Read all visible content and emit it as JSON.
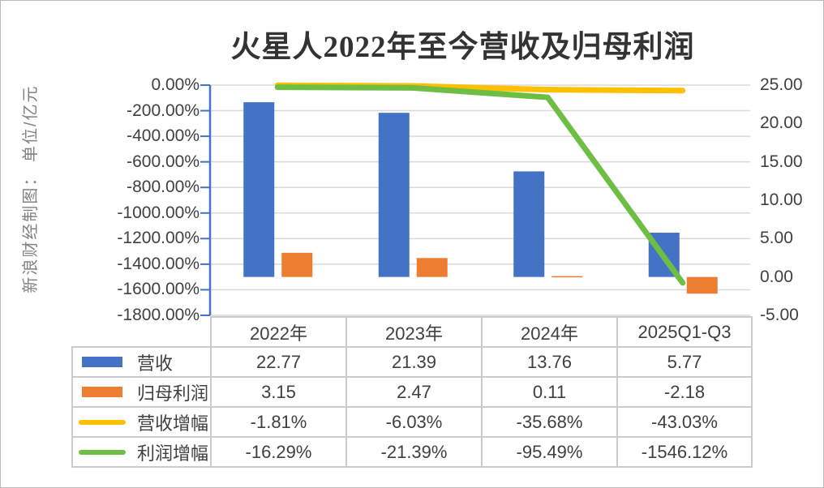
{
  "title": "火星人2022年至今营收及归母利润",
  "unit_note": "新浪财经制图： 单位/亿元",
  "colors": {
    "revenue_bar": "#4472C4",
    "net_profit_bar": "#ED7D31",
    "revenue_growth_line": "#FFC000",
    "profit_growth_line": "#6FBE44",
    "gridline": "#D9D9D9",
    "axis_line": "#4472C4",
    "text": "#404040",
    "table_border": "#cbcbcb"
  },
  "chart_data": {
    "type": "bar+line",
    "title": "火星人2022年至今营收及归母利润",
    "categories": [
      "2022年",
      "2023年",
      "2024年",
      "2025Q1-Q3"
    ],
    "series": [
      {
        "key": "revenue",
        "name": "营收",
        "type": "bar",
        "axis": "right",
        "color": "#4472C4",
        "values": [
          22.77,
          21.39,
          13.76,
          5.77
        ]
      },
      {
        "key": "net-profit",
        "name": "归母利润",
        "type": "bar",
        "axis": "right",
        "color": "#ED7D31",
        "values": [
          3.15,
          2.47,
          0.11,
          -2.18
        ]
      },
      {
        "key": "revenue-growth",
        "name": "营收增幅",
        "type": "line",
        "axis": "left",
        "color": "#FFC000",
        "unit": "%",
        "values": [
          -1.81,
          -6.03,
          -35.68,
          -43.03
        ]
      },
      {
        "key": "profit-growth",
        "name": "利润增幅",
        "type": "line",
        "axis": "left",
        "color": "#6FBE44",
        "unit": "%",
        "values": [
          -16.29,
          -21.39,
          -95.49,
          -1546.12
        ]
      }
    ],
    "left_axis": {
      "min": -1800,
      "max": 0,
      "step": 200,
      "unit": "%",
      "tick_labels": [
        "0.00%",
        "-200.00%",
        "-400.00%",
        "-600.00%",
        "-800.00%",
        "-1000.00%",
        "-1200.00%",
        "-1400.00%",
        "-1600.00%",
        "-1800.00%"
      ]
    },
    "right_axis": {
      "min": -5,
      "max": 25,
      "step": 5,
      "tick_labels": [
        "25.00",
        "20.00",
        "15.00",
        "10.00",
        "5.00",
        "0.00",
        "-5.00"
      ]
    },
    "grid": "horizontal gridlines at left-axis steps",
    "legend_position": "table left column"
  },
  "table": {
    "header": [
      "2022年",
      "2023年",
      "2024年",
      "2025Q1-Q3"
    ],
    "rows": [
      {
        "key": "revenue",
        "label": "营收",
        "swatch": {
          "shape": "rect",
          "color": "#4472C4"
        },
        "cells": [
          "22.77",
          "21.39",
          "13.76",
          "5.77"
        ]
      },
      {
        "key": "net-profit",
        "label": "归母利润",
        "swatch": {
          "shape": "rect",
          "color": "#ED7D31"
        },
        "cells": [
          "3.15",
          "2.47",
          "0.11",
          "-2.18"
        ]
      },
      {
        "key": "revenue-growth",
        "label": "营收增幅",
        "swatch": {
          "shape": "line",
          "color": "#FFC000"
        },
        "cells": [
          "-1.81%",
          "-6.03%",
          "-35.68%",
          "-43.03%"
        ]
      },
      {
        "key": "profit-growth",
        "label": "利润增幅",
        "swatch": {
          "shape": "line",
          "color": "#6FBE44"
        },
        "cells": [
          "-16.29%",
          "-21.39%",
          "-95.49%",
          "-1546.12%"
        ]
      }
    ]
  }
}
